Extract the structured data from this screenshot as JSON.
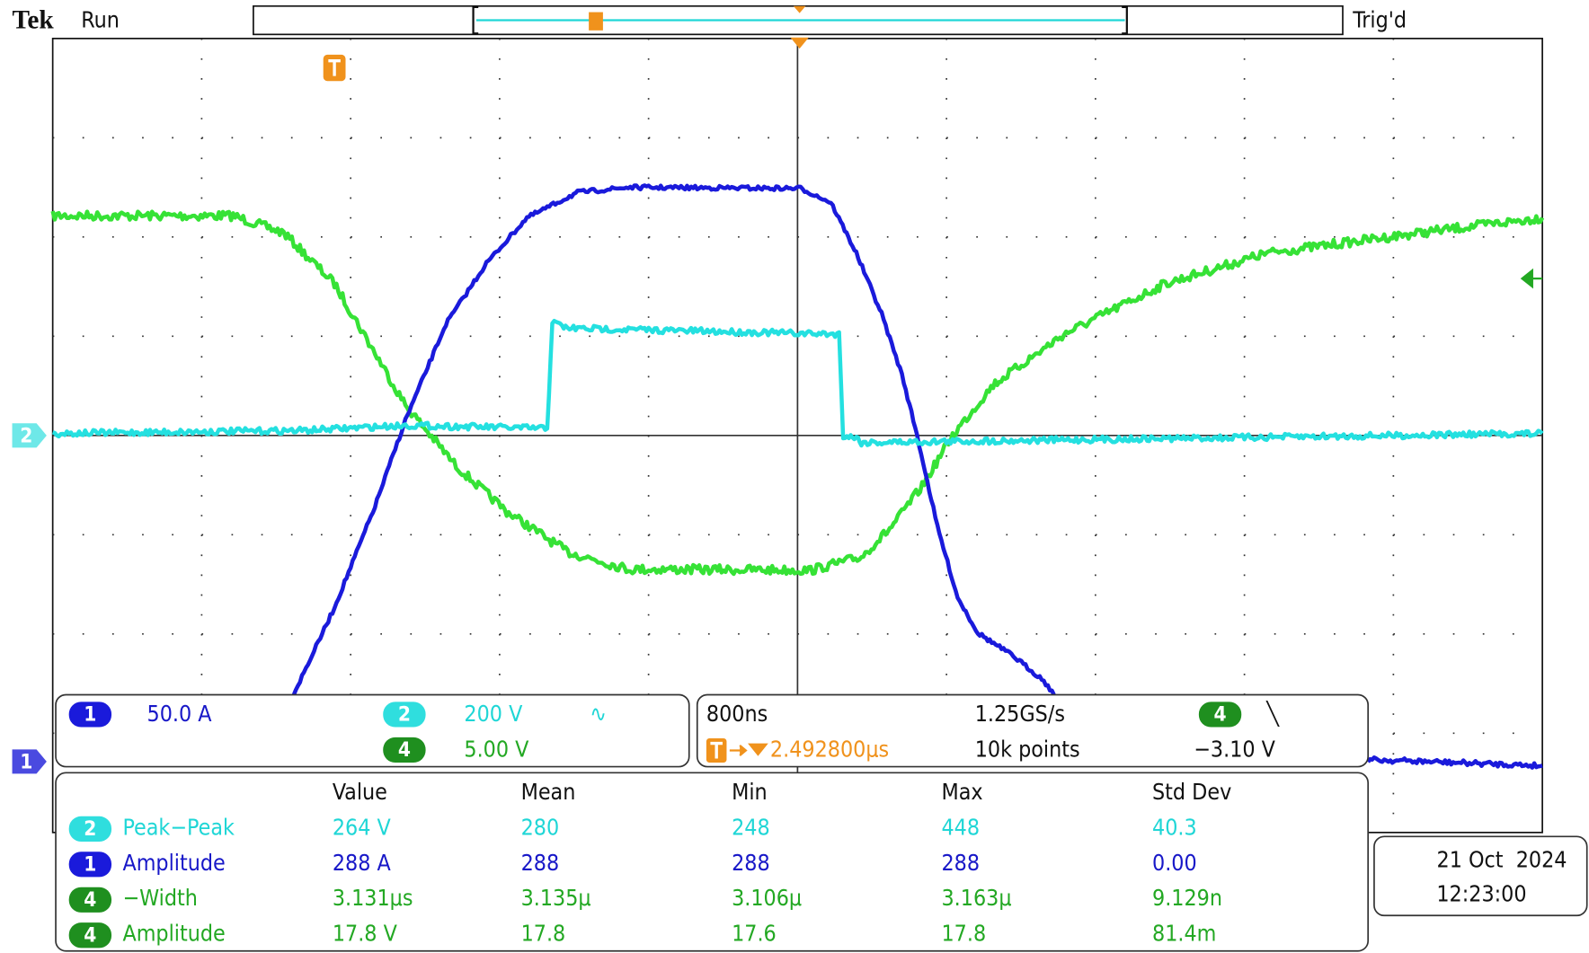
{
  "header": {
    "brand": "Tek",
    "status": "Run",
    "trigger_status": "Trig'd"
  },
  "markers": {
    "ch2": "2",
    "ch1": "1"
  },
  "channels": [
    {
      "badge": "1",
      "scale": "50.0 A"
    },
    {
      "badge": "2",
      "scale": "200 V",
      "coupling": "∿"
    },
    {
      "badge": "4",
      "scale": "5.00 V"
    }
  ],
  "timebase": {
    "scale": "800ns",
    "sample_rate": "1.25GS/s",
    "trigger_position": "2.492800μs",
    "record_length": "10k points",
    "trigger_source": "4",
    "trigger_slope": "╲",
    "trigger_level": "−3.10 V"
  },
  "measurements": {
    "columns": [
      "Value",
      "Mean",
      "Min",
      "Max",
      "Std Dev"
    ],
    "rows": [
      {
        "channel": "2",
        "name": "Peak−Peak",
        "cells": [
          "264 V",
          "280",
          "248",
          "448",
          "40.3"
        ]
      },
      {
        "channel": "1",
        "name": "Amplitude",
        "cells": [
          "288 A",
          "288",
          "288",
          "288",
          "0.00"
        ]
      },
      {
        "channel": "4",
        "name": "−Width",
        "cells": [
          "3.131μs",
          "3.135μ",
          "3.106μ",
          "3.163μ",
          "9.129n"
        ]
      },
      {
        "channel": "4",
        "name": "Amplitude",
        "cells": [
          "17.8 V",
          "17.8",
          "17.6",
          "17.8",
          "81.4m"
        ]
      }
    ]
  },
  "datetime": {
    "date": "21 Oct  2024",
    "time": "12:23:00"
  }
}
